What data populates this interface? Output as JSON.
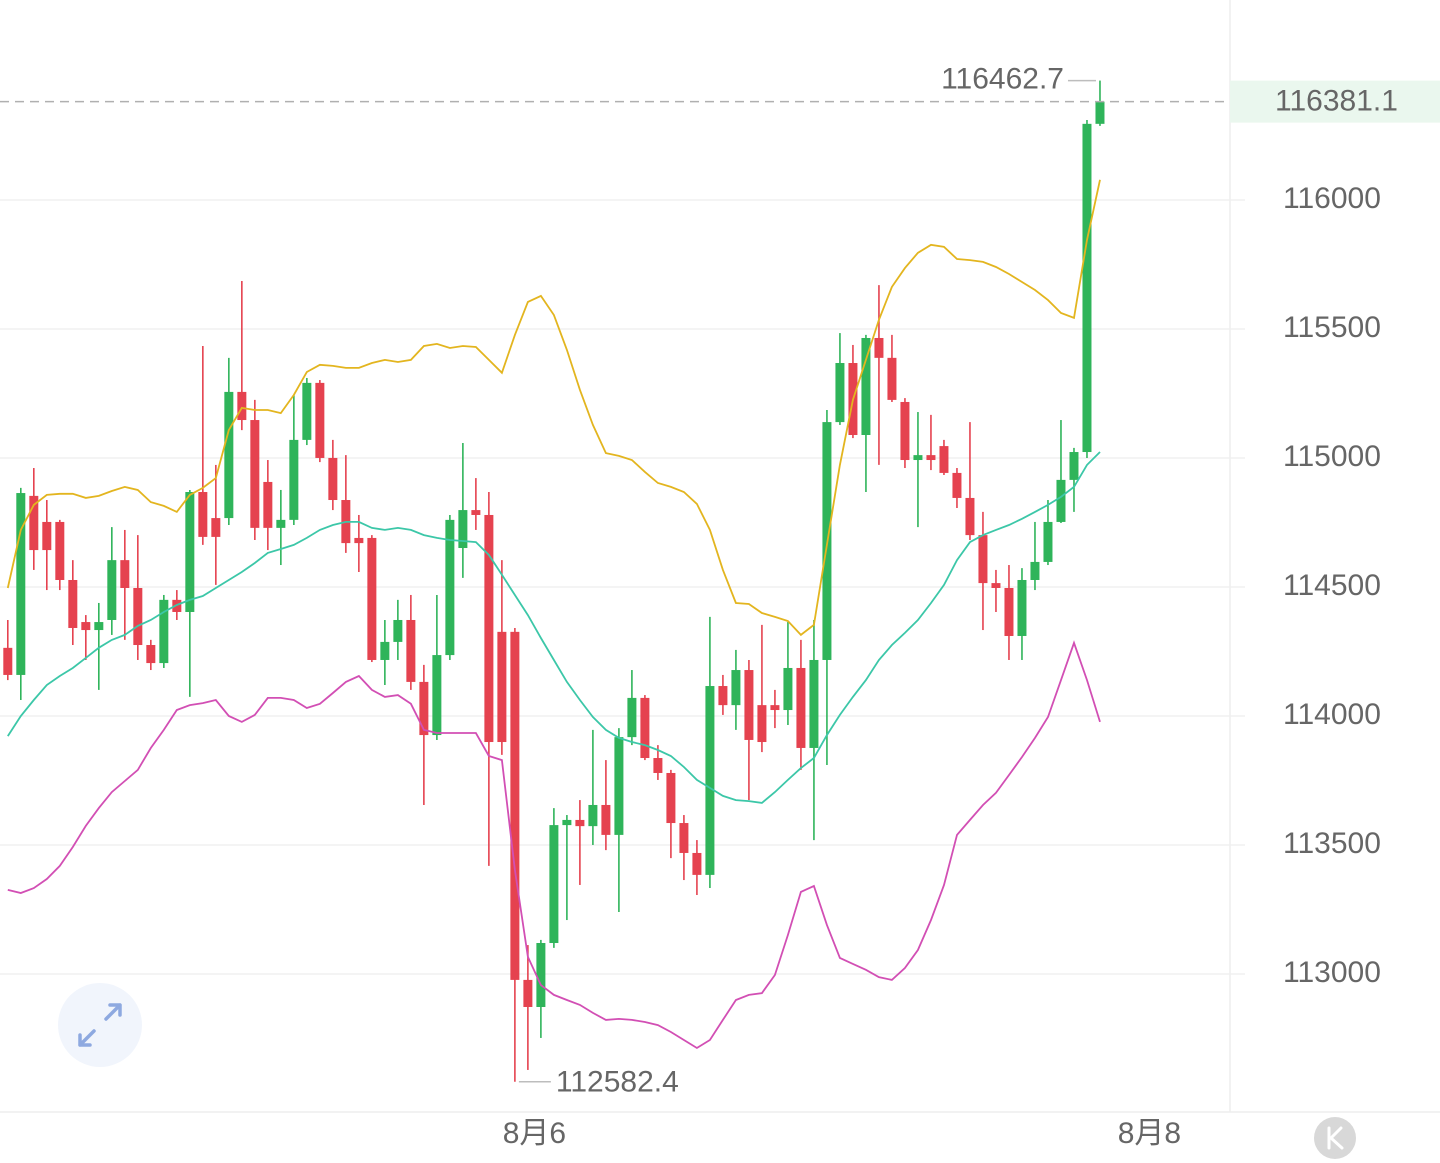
{
  "chart_data": {
    "type": "candlestick",
    "up_color": "#2fb45a",
    "down_color": "#e5424f",
    "ylim": [
      112465,
      116775
    ],
    "yticks": [
      113000,
      113500,
      114000,
      114500,
      115000,
      115500,
      116000
    ],
    "xlim": [
      -0.6,
      94
    ],
    "xticks": [
      {
        "value": 40.5,
        "label": "8月6"
      },
      {
        "value": 87.8,
        "label": "8月8"
      }
    ],
    "grid": true,
    "open": [
      114264,
      114159,
      114853,
      114752,
      114752,
      114527,
      114364,
      114333,
      114372,
      114604,
      114496,
      114275,
      114205,
      114450,
      114403,
      114868,
      114767,
      114767,
      115256,
      115147,
      114907,
      114729,
      114760,
      115070,
      115291,
      115000,
      114837,
      114690,
      114690,
      114217,
      114287,
      114372,
      114132,
      113926,
      114236,
      114651,
      114798,
      114779,
      114326,
      114326,
      112977,
      112872,
      113120,
      113577,
      113597,
      113573,
      113655,
      113539,
      113918,
      114070,
      113837,
      113779,
      113585,
      113469,
      113384,
      114116,
      114042,
      114178,
      114042,
      114042,
      114023,
      114186,
      113876,
      114217,
      115139,
      115368,
      115089,
      115465,
      115388,
      115217,
      114992,
      115011,
      115046,
      114942,
      114845,
      114701,
      114515,
      114496,
      114310,
      114527,
      114597,
      114752,
      114915,
      115023,
      116295
    ],
    "high": [
      114372,
      114884,
      114961,
      114837,
      114760,
      114604,
      114391,
      114438,
      114732,
      114721,
      114701,
      114295,
      114469,
      114488,
      114876,
      115434,
      114973,
      115388,
      115686,
      115225,
      114992,
      114876,
      115244,
      115310,
      115302,
      115070,
      115011,
      114779,
      114701,
      114372,
      114450,
      114469,
      114198,
      114469,
      114779,
      115058,
      114922,
      114868,
      114604,
      114341,
      113112,
      113132,
      113643,
      113616,
      113674,
      113946,
      113829,
      113953,
      114178,
      114081,
      113887,
      113791,
      113616,
      113519,
      114384,
      114159,
      114256,
      114217,
      114353,
      114101,
      114364,
      114295,
      114372,
      115186,
      115484,
      115438,
      115477,
      115670,
      115477,
      115232,
      115178,
      115167,
      115070,
      114961,
      115139,
      114791,
      114566,
      114585,
      114573,
      114752,
      114837,
      115147,
      115039,
      116310,
      116462.7
    ],
    "low": [
      114139,
      114062,
      114566,
      114488,
      114488,
      114275,
      114217,
      114101,
      114314,
      114295,
      114217,
      114178,
      114186,
      114372,
      114074,
      114663,
      114508,
      114740,
      115108,
      114682,
      114643,
      114585,
      114740,
      115050,
      114984,
      114798,
      114632,
      114558,
      114209,
      114120,
      114217,
      114101,
      113655,
      113907,
      114217,
      114535,
      114721,
      113419,
      113849,
      112582.4,
      112628,
      112752,
      113101,
      113209,
      113345,
      113500,
      113480,
      113240,
      113887,
      113829,
      113752,
      113449,
      113364,
      113306,
      113333,
      114004,
      113946,
      113674,
      113860,
      113953,
      113965,
      113791,
      113519,
      113810,
      115128,
      115077,
      114868,
      114973,
      115217,
      114961,
      114732,
      114953,
      114934,
      114806,
      114682,
      114333,
      114403,
      114217,
      114217,
      114488,
      114585,
      114748,
      114791,
      115000,
      116287
    ],
    "close": [
      114159,
      114864,
      114643,
      114643,
      114527,
      114341,
      114333,
      114364,
      114604,
      114496,
      114275,
      114205,
      114450,
      114403,
      114868,
      114694,
      114694,
      115256,
      115147,
      114729,
      114729,
      114760,
      115070,
      115291,
      115000,
      114837,
      114670,
      114670,
      114217,
      114287,
      114372,
      114132,
      113926,
      114236,
      114760,
      114798,
      114779,
      113899,
      113899,
      112977,
      112872,
      113120,
      113577,
      113597,
      113573,
      113655,
      113539,
      113918,
      114070,
      113837,
      113779,
      113585,
      113469,
      113384,
      114116,
      114042,
      114178,
      113907,
      113899,
      114023,
      114186,
      113876,
      114217,
      115139,
      115368,
      115089,
      115465,
      115388,
      115225,
      114992,
      115011,
      114992,
      114942,
      114845,
      114701,
      114515,
      114496,
      114310,
      114527,
      114597,
      114752,
      114915,
      115023,
      116295,
      116381.1
    ],
    "lines": [
      {
        "color": "#e3b51f",
        "values": [
          114496,
          114721,
          114818,
          114857,
          114861,
          114861,
          114845,
          114853,
          114872,
          114888,
          114876,
          114829,
          114814,
          114791,
          114857,
          114884,
          114922,
          115108,
          115194,
          115186,
          115186,
          115174,
          115244,
          115333,
          115361,
          115357,
          115349,
          115349,
          115368,
          115380,
          115372,
          115380,
          115434,
          115442,
          115426,
          115434,
          115430,
          115380,
          115330,
          115477,
          115605,
          115628,
          115554,
          115419,
          115264,
          115128,
          115019,
          115008,
          114992,
          114946,
          114903,
          114888,
          114868,
          114822,
          114721,
          114566,
          114438,
          114434,
          114399,
          114384,
          114368,
          114314,
          114353,
          114663,
          114973,
          115225,
          115380,
          115535,
          115663,
          115736,
          115795,
          115826,
          115818,
          115771,
          115767,
          115760,
          115740,
          115713,
          115682,
          115651,
          115612,
          115562,
          115543,
          115845,
          116078
        ]
      },
      {
        "color": "#3cc7a8",
        "values": [
          113922,
          114000,
          114062,
          114120,
          114155,
          114186,
          114225,
          114264,
          114295,
          114314,
          114349,
          114372,
          114403,
          114430,
          114450,
          114465,
          114496,
          114527,
          114558,
          114593,
          114632,
          114647,
          114663,
          114690,
          114721,
          114740,
          114752,
          114752,
          114729,
          114721,
          114729,
          114721,
          114701,
          114690,
          114682,
          114678,
          114674,
          114624,
          114547,
          114469,
          114391,
          114302,
          114217,
          114132,
          114062,
          113996,
          113946,
          113915,
          113899,
          113887,
          113868,
          113845,
          113802,
          113752,
          113721,
          113690,
          113674,
          113670,
          113663,
          113705,
          113752,
          113798,
          113837,
          113926,
          114004,
          114074,
          114139,
          114217,
          114275,
          114322,
          114372,
          114438,
          114508,
          114604,
          114674,
          114701,
          114721,
          114740,
          114764,
          114791,
          114818,
          114849,
          114888,
          114973,
          115023
        ]
      },
      {
        "color": "#d24fb4",
        "values": [
          113326,
          113314,
          113333,
          113368,
          113419,
          113492,
          113574,
          113643,
          113705,
          113748,
          113791,
          113876,
          113946,
          114023,
          114042,
          114050,
          114062,
          114000,
          113977,
          114004,
          114070,
          114070,
          114062,
          114031,
          114047,
          114089,
          114132,
          114155,
          114101,
          114074,
          114081,
          114047,
          113946,
          113934,
          113934,
          113934,
          113934,
          113845,
          113829,
          113403,
          113066,
          112957,
          112919,
          112899,
          112880,
          112849,
          112822,
          112826,
          112822,
          112814,
          112802,
          112775,
          112744,
          112713,
          112744,
          112822,
          112899,
          112919,
          112926,
          112996,
          113151,
          113318,
          113341,
          113190,
          113062,
          113039,
          113016,
          112988,
          112977,
          113023,
          113093,
          113209,
          113345,
          113539,
          113597,
          113655,
          113702,
          113771,
          113841,
          113915,
          113996,
          114139,
          114283,
          114139,
          113977
        ]
      }
    ]
  }
}
